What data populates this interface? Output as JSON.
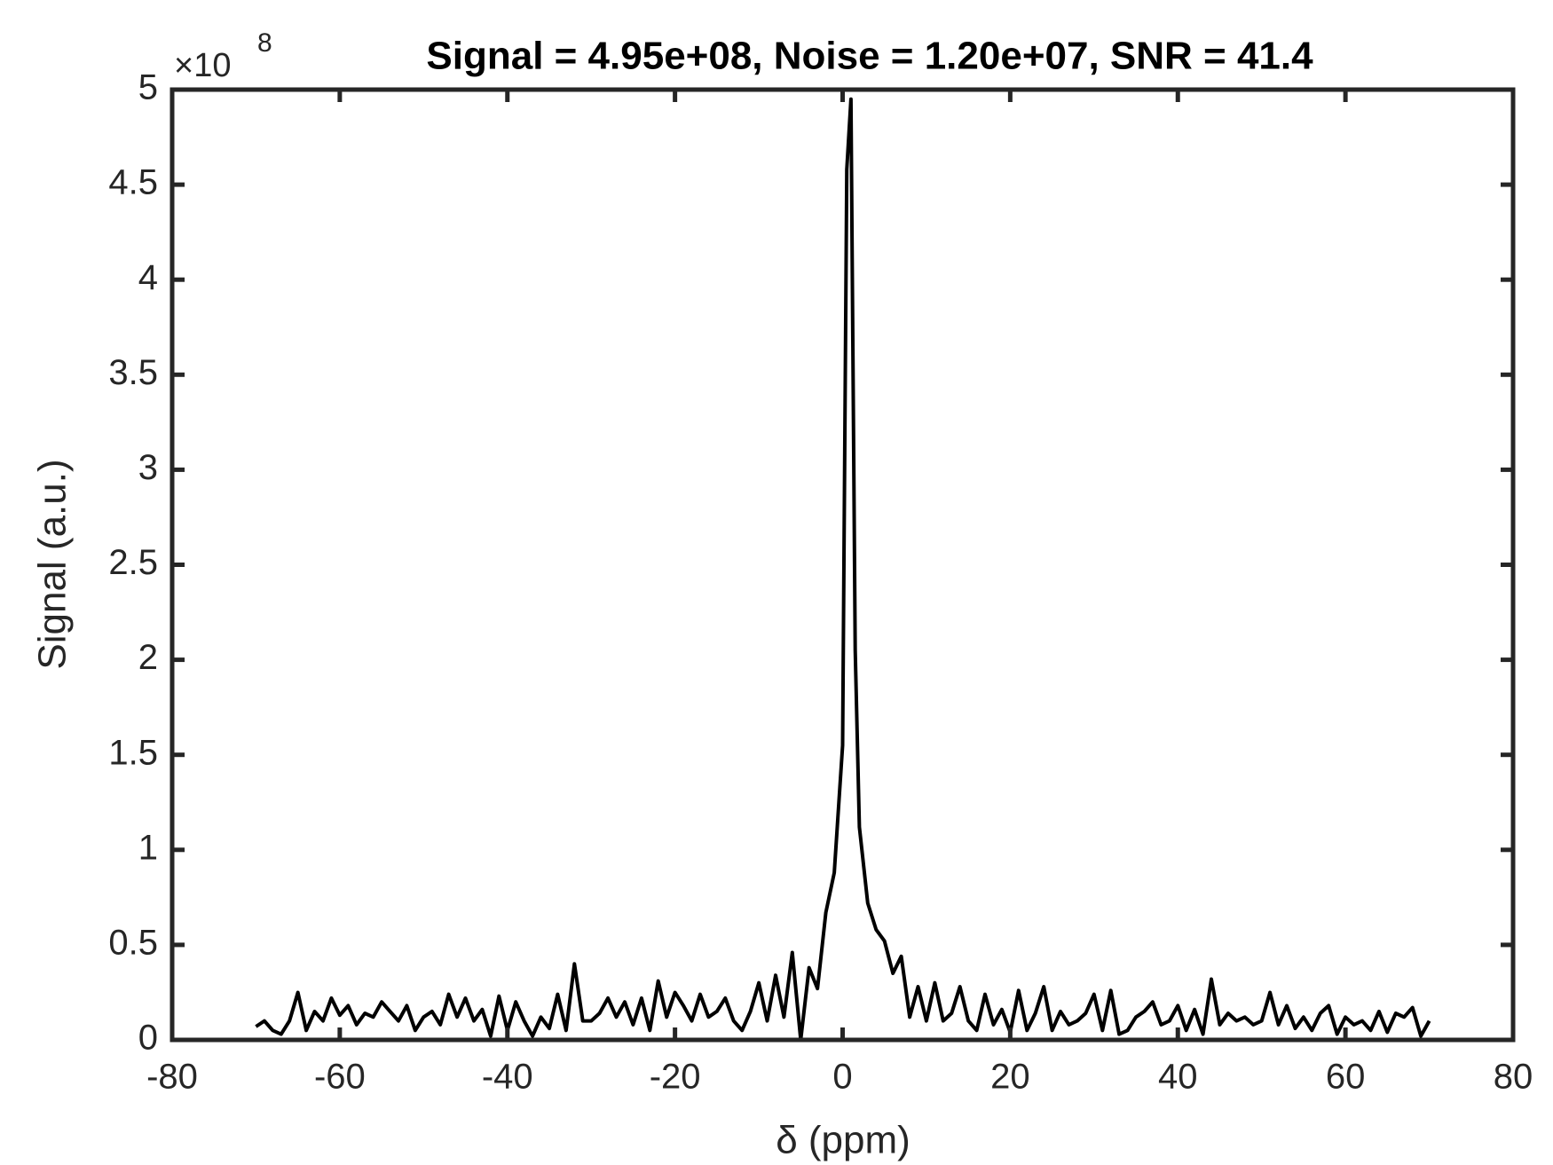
{
  "chart_data": {
    "type": "line",
    "title": "Signal = 4.95e+08, Noise = 1.20e+07, SNR = 41.4",
    "x_label": "δ (ppm)",
    "y_label": "Signal (a.u.)",
    "y_exponent": {
      "base": "×10",
      "power": "8"
    },
    "x": [
      -70,
      -69,
      -68,
      -67,
      -66,
      -65,
      -64,
      -63,
      -62,
      -61,
      -60,
      -59,
      -58,
      -57,
      -56,
      -55,
      -54,
      -53,
      -52,
      -51,
      -50,
      -49,
      -48,
      -47,
      -46,
      -45,
      -44,
      -43,
      -42,
      -41,
      -40,
      -39,
      -38,
      -37,
      -36,
      -35,
      -34,
      -33,
      -32,
      -31,
      -30,
      -29,
      -28,
      -27,
      -26,
      -25,
      -24,
      -23,
      -22,
      -21,
      -20,
      -19,
      -18,
      -17,
      -16,
      -15,
      -14,
      -13,
      -12,
      -11,
      -10,
      -9,
      -8,
      -7,
      -6,
      -5,
      -4,
      -3,
      -2,
      -1,
      0,
      0.5,
      1,
      1.5,
      2,
      3,
      4,
      5,
      6,
      7,
      8,
      9,
      10,
      11,
      12,
      13,
      14,
      15,
      16,
      17,
      18,
      19,
      20,
      21,
      22,
      23,
      24,
      25,
      26,
      27,
      28,
      29,
      30,
      31,
      32,
      33,
      34,
      35,
      36,
      37,
      38,
      39,
      40,
      41,
      42,
      43,
      44,
      45,
      46,
      47,
      48,
      49,
      50,
      51,
      52,
      53,
      54,
      55,
      56,
      57,
      58,
      59,
      60,
      61,
      62,
      63,
      64,
      65,
      66,
      67,
      68,
      69,
      70
    ],
    "series": [
      {
        "name": "signal",
        "color": "#000000",
        "values": [
          0.07,
          0.1,
          0.05,
          0.03,
          0.1,
          0.25,
          0.05,
          0.15,
          0.1,
          0.22,
          0.13,
          0.18,
          0.08,
          0.14,
          0.12,
          0.2,
          0.15,
          0.1,
          0.18,
          0.05,
          0.12,
          0.15,
          0.08,
          0.24,
          0.12,
          0.22,
          0.1,
          0.16,
          0.02,
          0.23,
          0.05,
          0.2,
          0.1,
          0.02,
          0.12,
          0.06,
          0.24,
          0.05,
          0.4,
          0.1,
          0.1,
          0.14,
          0.22,
          0.12,
          0.2,
          0.08,
          0.22,
          0.05,
          0.31,
          0.12,
          0.25,
          0.18,
          0.1,
          0.24,
          0.12,
          0.15,
          0.22,
          0.1,
          0.05,
          0.15,
          0.3,
          0.1,
          0.34,
          0.12,
          0.46,
          0.0,
          0.38,
          0.27,
          0.67,
          0.88,
          1.55,
          4.58,
          4.95,
          2.05,
          1.12,
          0.72,
          0.58,
          0.52,
          0.35,
          0.44,
          0.12,
          0.28,
          0.1,
          0.3,
          0.1,
          0.14,
          0.28,
          0.1,
          0.05,
          0.24,
          0.08,
          0.16,
          0.04,
          0.26,
          0.05,
          0.14,
          0.28,
          0.05,
          0.15,
          0.08,
          0.1,
          0.14,
          0.24,
          0.05,
          0.26,
          0.03,
          0.05,
          0.12,
          0.15,
          0.2,
          0.08,
          0.1,
          0.18,
          0.05,
          0.16,
          0.03,
          0.32,
          0.08,
          0.14,
          0.1,
          0.12,
          0.08,
          0.1,
          0.25,
          0.08,
          0.18,
          0.06,
          0.12,
          0.05,
          0.14,
          0.18,
          0.03,
          0.12,
          0.08,
          0.1,
          0.05,
          0.15,
          0.04,
          0.14,
          0.12,
          0.17,
          0.02,
          0.1
        ]
      }
    ],
    "xlim": [
      -80,
      80
    ],
    "xticks": [
      -80,
      -60,
      -40,
      -20,
      0,
      20,
      40,
      60,
      80
    ],
    "ylim": [
      0,
      5
    ],
    "yticks": [
      0,
      0.5,
      1,
      1.5,
      2,
      2.5,
      3,
      3.5,
      4,
      4.5,
      5
    ]
  }
}
